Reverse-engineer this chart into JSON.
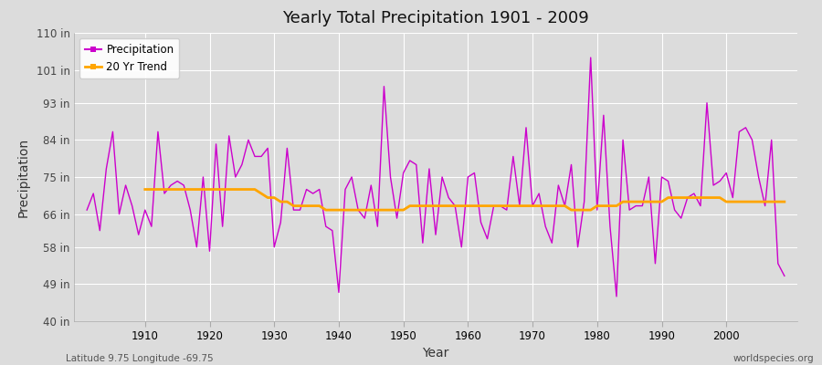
{
  "title": "Yearly Total Precipitation 1901 - 2009",
  "xlabel": "Year",
  "ylabel": "Precipitation",
  "footnote_left": "Latitude 9.75 Longitude -69.75",
  "footnote_right": "worldspecies.org",
  "ylim": [
    40,
    110
  ],
  "yticks": [
    40,
    49,
    58,
    66,
    75,
    84,
    93,
    101,
    110
  ],
  "ytick_labels": [
    "40 in",
    "49 in",
    "58 in",
    "66 in",
    "75 in",
    "84 in",
    "93 in",
    "101 in",
    "110 in"
  ],
  "precip_color": "#cc00cc",
  "trend_color": "#ffa500",
  "background_color": "#dcdcdc",
  "legend_items": [
    "Precipitation",
    "20 Yr Trend"
  ],
  "years": [
    1901,
    1902,
    1903,
    1904,
    1905,
    1906,
    1907,
    1908,
    1909,
    1910,
    1911,
    1912,
    1913,
    1914,
    1915,
    1916,
    1917,
    1918,
    1919,
    1920,
    1921,
    1922,
    1923,
    1924,
    1925,
    1926,
    1927,
    1928,
    1929,
    1930,
    1931,
    1932,
    1933,
    1934,
    1935,
    1936,
    1937,
    1938,
    1939,
    1940,
    1941,
    1942,
    1943,
    1944,
    1945,
    1946,
    1947,
    1948,
    1949,
    1950,
    1951,
    1952,
    1953,
    1954,
    1955,
    1956,
    1957,
    1958,
    1959,
    1960,
    1961,
    1962,
    1963,
    1964,
    1965,
    1966,
    1967,
    1968,
    1969,
    1970,
    1971,
    1972,
    1973,
    1974,
    1975,
    1976,
    1977,
    1978,
    1979,
    1980,
    1981,
    1982,
    1983,
    1984,
    1985,
    1986,
    1987,
    1988,
    1989,
    1990,
    1991,
    1992,
    1993,
    1994,
    1995,
    1996,
    1997,
    1998,
    1999,
    2000,
    2001,
    2002,
    2003,
    2004,
    2005,
    2006,
    2007,
    2008,
    2009
  ],
  "precipitation": [
    67,
    71,
    62,
    77,
    86,
    66,
    73,
    68,
    61,
    67,
    63,
    86,
    71,
    73,
    74,
    73,
    67,
    58,
    75,
    57,
    83,
    63,
    85,
    75,
    78,
    84,
    80,
    80,
    82,
    58,
    64,
    82,
    67,
    67,
    72,
    71,
    72,
    63,
    62,
    47,
    72,
    75,
    67,
    65,
    73,
    63,
    97,
    75,
    65,
    76,
    79,
    78,
    59,
    77,
    61,
    75,
    70,
    68,
    58,
    75,
    76,
    64,
    60,
    68,
    68,
    67,
    80,
    68,
    87,
    68,
    71,
    63,
    59,
    73,
    68,
    78,
    58,
    69,
    104,
    67,
    90,
    63,
    46,
    84,
    67,
    68,
    68,
    75,
    54,
    75,
    74,
    67,
    65,
    70,
    71,
    68,
    93,
    73,
    74,
    76,
    70,
    86,
    87,
    84,
    75,
    68,
    84,
    54,
    51
  ],
  "trend": [
    null,
    null,
    null,
    null,
    null,
    null,
    null,
    null,
    null,
    72,
    72,
    72,
    72,
    72,
    72,
    72,
    72,
    72,
    72,
    72,
    72,
    72,
    72,
    72,
    72,
    72,
    72,
    71,
    70,
    70,
    69,
    69,
    68,
    68,
    68,
    68,
    68,
    67,
    67,
    67,
    67,
    67,
    67,
    67,
    67,
    67,
    67,
    67,
    67,
    67,
    68,
    68,
    68,
    68,
    68,
    68,
    68,
    68,
    68,
    68,
    68,
    68,
    68,
    68,
    68,
    68,
    68,
    68,
    68,
    68,
    68,
    68,
    68,
    68,
    68,
    67,
    67,
    67,
    67,
    68,
    68,
    68,
    68,
    69,
    69,
    69,
    69,
    69,
    69,
    69,
    70,
    70,
    70,
    70,
    70,
    70,
    70,
    70,
    70,
    69,
    69,
    69,
    69,
    69,
    69,
    69,
    69,
    69,
    69,
    null
  ]
}
